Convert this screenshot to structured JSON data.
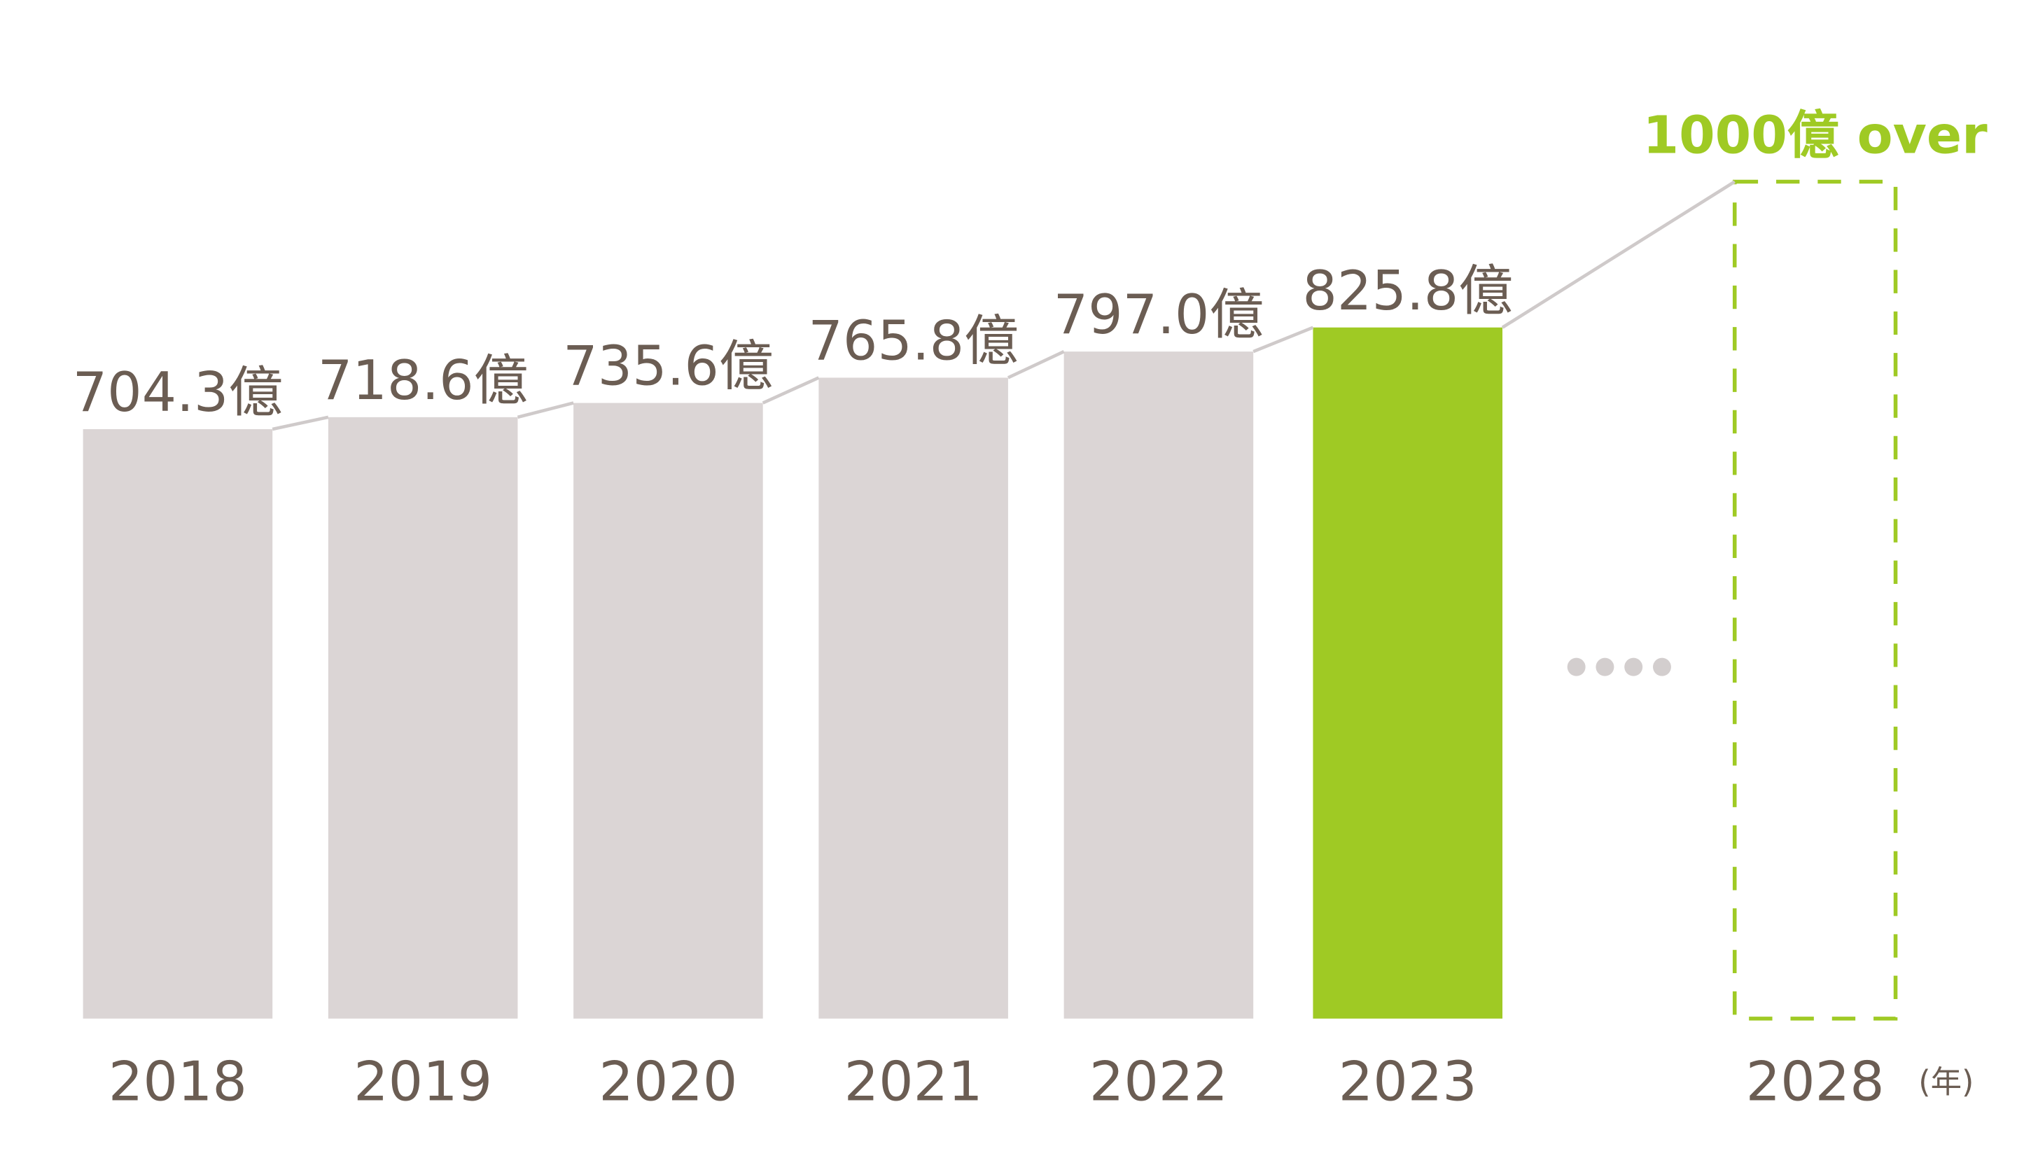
{
  "chart_data": {
    "type": "bar",
    "categories": [
      "2018",
      "2019",
      "2020",
      "2021",
      "2022",
      "2023",
      null,
      "2028"
    ],
    "values": [
      704.3,
      718.6,
      735.6,
      765.8,
      797.0,
      825.8,
      null,
      1000
    ],
    "value_labels": [
      "704.3億",
      "718.6億",
      "735.6億",
      "765.8億",
      "797.0億",
      "825.8億",
      null,
      "1000億 over"
    ],
    "colors": [
      "#dbd5d5",
      "#dbd5d5",
      "#dbd5d5",
      "#dbd5d5",
      "#dbd5d5",
      "#9fca24",
      null,
      "#9fca24"
    ],
    "bar_styles": [
      "solid",
      "solid",
      "solid",
      "solid",
      "solid",
      "solid",
      null,
      "dashed"
    ],
    "x_label": "(年)",
    "ylim": [
      0,
      1217
    ]
  }
}
